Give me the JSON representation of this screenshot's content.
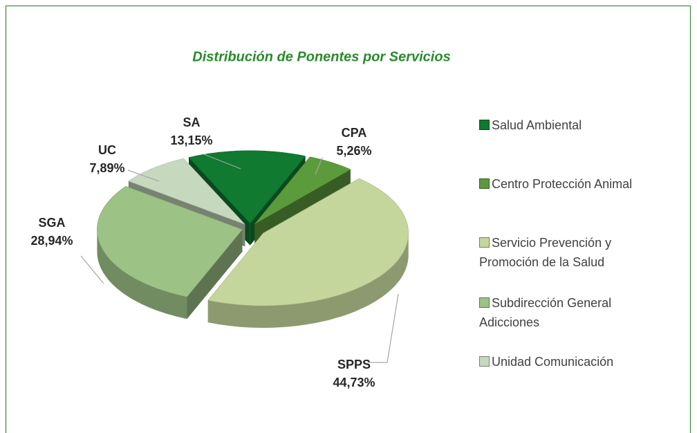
{
  "chart_data": {
    "type": "pie",
    "title": "Distribución de Ponentes por Servicios",
    "categories": [
      "Salud Ambiental",
      "Centro Protección Animal",
      "Servicio Prevención y Promoción de la Salud",
      "Subdirección General Adicciones",
      "Unidad Comunicación"
    ],
    "labels": [
      "SA",
      "CPA",
      "SPPS",
      "SGA",
      "UC"
    ],
    "values": [
      13.15,
      5.26,
      44.73,
      28.94,
      7.89
    ],
    "value_labels": [
      "13,15%",
      "5,26%",
      "44,73%",
      "28,94%",
      "7,89%"
    ],
    "colors": [
      "#0f7a30",
      "#5c9b3c",
      "#c4d69c",
      "#9cc285",
      "#c6d9bf"
    ],
    "legend": "right"
  }
}
